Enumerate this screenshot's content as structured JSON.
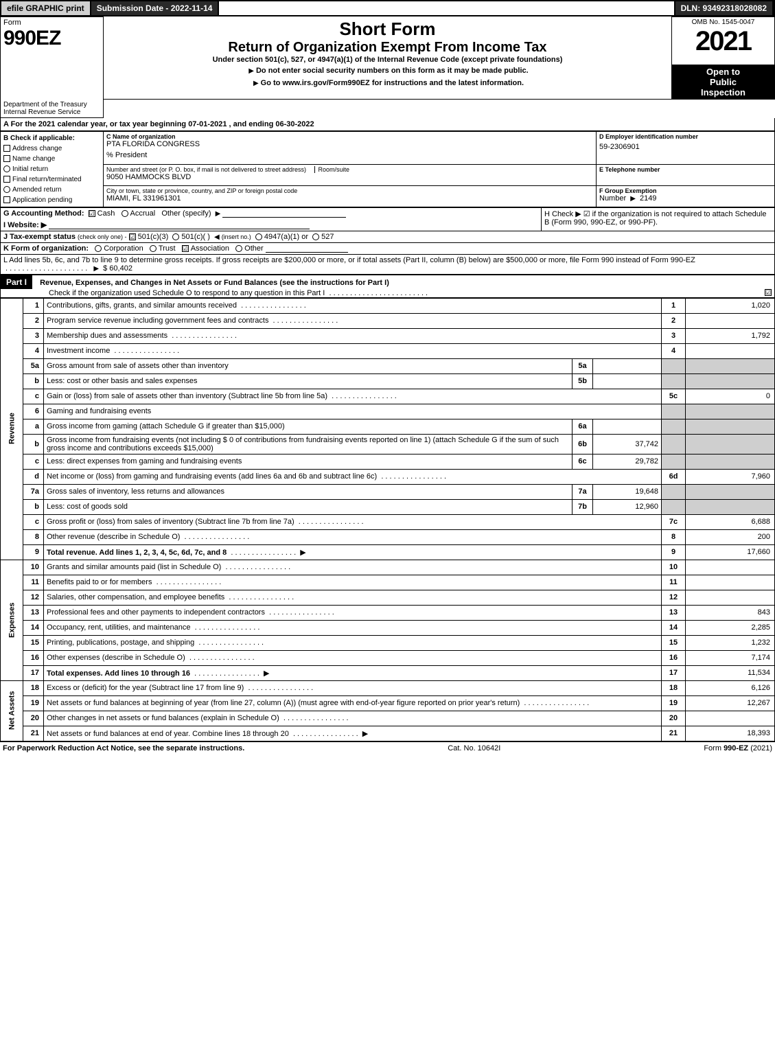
{
  "top": {
    "efile": "efile GRAPHIC print",
    "submission_date": "Submission Date - 2022-11-14",
    "dln": "DLN: 93492318028082"
  },
  "header": {
    "form_word": "Form",
    "form_num": "990EZ",
    "dept": "Department of the Treasury",
    "irs": "Internal Revenue Service",
    "short_form": "Short Form",
    "return_title": "Return of Organization Exempt From Income Tax",
    "subtitle": "Under section 501(c), 527, or 4947(a)(1) of the Internal Revenue Code (except private foundations)",
    "ssn_warn": "Do not enter social security numbers on this form as it may be made public.",
    "goto": "Go to www.irs.gov/Form990EZ for instructions and the latest information.",
    "omb": "OMB No. 1545-0047",
    "year": "2021",
    "open": "Open to",
    "public": "Public",
    "inspection": "Inspection"
  },
  "section_a": "A  For the 2021 calendar year, or tax year beginning 07-01-2021 , and ending 06-30-2022",
  "box_b": {
    "title": "B  Check if applicable:",
    "items": [
      "Address change",
      "Name change",
      "Initial return",
      "Final return/terminated",
      "Amended return",
      "Application pending"
    ]
  },
  "box_c": {
    "label": "C Name of organization",
    "org": "PTA FLORIDA CONGRESS",
    "pct": "% President",
    "street_label": "Number and street (or P. O. box, if mail is not delivered to street address)",
    "room": "Room/suite",
    "street": "9050 HAMMOCKS BLVD",
    "city_label": "City or town, state or province, country, and ZIP or foreign postal code",
    "city": "MIAMI, FL  331961301"
  },
  "box_d": {
    "label": "D Employer identification number",
    "value": "59-2306901"
  },
  "box_e": {
    "label": "E Telephone number",
    "value": ""
  },
  "box_f": {
    "label": "F Group Exemption",
    "num_word": "Number",
    "value": "2149"
  },
  "box_g": {
    "label": "G Accounting Method:",
    "cash": "Cash",
    "accrual": "Accrual",
    "other": "Other (specify)"
  },
  "box_h": {
    "text": "H   Check ▶  ☑  if the organization is not required to attach Schedule B (Form 990, 990-EZ, or 990-PF)."
  },
  "box_i": {
    "label": "I Website: ▶"
  },
  "box_j": {
    "label": "J Tax-exempt status",
    "note": "(check only one) -",
    "o1": "501(c)(3)",
    "o2": "501(c)(  )",
    "insert": "(insert no.)",
    "o3": "4947(a)(1) or",
    "o4": "527"
  },
  "box_k": {
    "label": "K Form of organization:",
    "items": [
      "Corporation",
      "Trust",
      "Association",
      "Other"
    ]
  },
  "box_l": {
    "text": "L Add lines 5b, 6c, and 7b to line 9 to determine gross receipts. If gross receipts are $200,000 or more, or if total assets (Part II, column (B) below) are $500,000 or more, file Form 990 instead of Form 990-EZ",
    "amount": "$ 60,402"
  },
  "part1": {
    "label": "Part I",
    "title": "Revenue, Expenses, and Changes in Net Assets or Fund Balances (see the instructions for Part I)",
    "check": "Check if the organization used Schedule O to respond to any question in this Part I"
  },
  "revenue": {
    "label": "Revenue",
    "rows": [
      {
        "n": "1",
        "d": "Contributions, gifts, grants, and similar amounts received",
        "ln": "1",
        "amt": "1,020"
      },
      {
        "n": "2",
        "d": "Program service revenue including government fees and contracts",
        "ln": "2",
        "amt": ""
      },
      {
        "n": "3",
        "d": "Membership dues and assessments",
        "ln": "3",
        "amt": "1,792"
      },
      {
        "n": "4",
        "d": "Investment income",
        "ln": "4",
        "amt": ""
      },
      {
        "n": "5a",
        "d": "Gross amount from sale of assets other than inventory",
        "sl": "5a",
        "sa": ""
      },
      {
        "n": "b",
        "d": "Less: cost or other basis and sales expenses",
        "sl": "5b",
        "sa": ""
      },
      {
        "n": "c",
        "d": "Gain or (loss) from sale of assets other than inventory (Subtract line 5b from line 5a)",
        "ln": "5c",
        "amt": "0"
      },
      {
        "n": "6",
        "d": "Gaming and fundraising events"
      },
      {
        "n": "a",
        "d": "Gross income from gaming (attach Schedule G if greater than $15,000)",
        "sl": "6a",
        "sa": ""
      },
      {
        "n": "b",
        "d": "Gross income from fundraising events (not including $  0            of contributions from fundraising events reported on line 1) (attach Schedule G if the sum of such gross income and contributions exceeds $15,000)",
        "sl": "6b",
        "sa": "37,742"
      },
      {
        "n": "c",
        "d": "Less: direct expenses from gaming and fundraising events",
        "sl": "6c",
        "sa": "29,782"
      },
      {
        "n": "d",
        "d": "Net income or (loss) from gaming and fundraising events (add lines 6a and 6b and subtract line 6c)",
        "ln": "6d",
        "amt": "7,960"
      },
      {
        "n": "7a",
        "d": "Gross sales of inventory, less returns and allowances",
        "sl": "7a",
        "sa": "19,648"
      },
      {
        "n": "b",
        "d": "Less: cost of goods sold",
        "sl": "7b",
        "sa": "12,960"
      },
      {
        "n": "c",
        "d": "Gross profit or (loss) from sales of inventory (Subtract line 7b from line 7a)",
        "ln": "7c",
        "amt": "6,688"
      },
      {
        "n": "8",
        "d": "Other revenue (describe in Schedule O)",
        "ln": "8",
        "amt": "200"
      },
      {
        "n": "9",
        "d": "Total revenue. Add lines 1, 2, 3, 4, 5c, 6d, 7c, and 8",
        "ln": "9",
        "amt": "17,660",
        "bold": true,
        "arrow": true
      }
    ]
  },
  "expenses": {
    "label": "Expenses",
    "rows": [
      {
        "n": "10",
        "d": "Grants and similar amounts paid (list in Schedule O)",
        "ln": "10",
        "amt": ""
      },
      {
        "n": "11",
        "d": "Benefits paid to or for members",
        "ln": "11",
        "amt": ""
      },
      {
        "n": "12",
        "d": "Salaries, other compensation, and employee benefits",
        "ln": "12",
        "amt": ""
      },
      {
        "n": "13",
        "d": "Professional fees and other payments to independent contractors",
        "ln": "13",
        "amt": "843"
      },
      {
        "n": "14",
        "d": "Occupancy, rent, utilities, and maintenance",
        "ln": "14",
        "amt": "2,285"
      },
      {
        "n": "15",
        "d": "Printing, publications, postage, and shipping",
        "ln": "15",
        "amt": "1,232"
      },
      {
        "n": "16",
        "d": "Other expenses (describe in Schedule O)",
        "ln": "16",
        "amt": "7,174"
      },
      {
        "n": "17",
        "d": "Total expenses. Add lines 10 through 16",
        "ln": "17",
        "amt": "11,534",
        "bold": true,
        "arrow": true
      }
    ]
  },
  "netassets": {
    "label": "Net Assets",
    "rows": [
      {
        "n": "18",
        "d": "Excess or (deficit) for the year (Subtract line 17 from line 9)",
        "ln": "18",
        "amt": "6,126"
      },
      {
        "n": "19",
        "d": "Net assets or fund balances at beginning of year (from line 27, column (A)) (must agree with end-of-year figure reported on prior year's return)",
        "ln": "19",
        "amt": "12,267"
      },
      {
        "n": "20",
        "d": "Other changes in net assets or fund balances (explain in Schedule O)",
        "ln": "20",
        "amt": ""
      },
      {
        "n": "21",
        "d": "Net assets or fund balances at end of year. Combine lines 18 through 20",
        "ln": "21",
        "amt": "18,393",
        "arrow": true
      }
    ]
  },
  "footer": {
    "left": "For Paperwork Reduction Act Notice, see the separate instructions.",
    "mid": "Cat. No. 10642I",
    "right": "Form 990-EZ (2021)"
  }
}
